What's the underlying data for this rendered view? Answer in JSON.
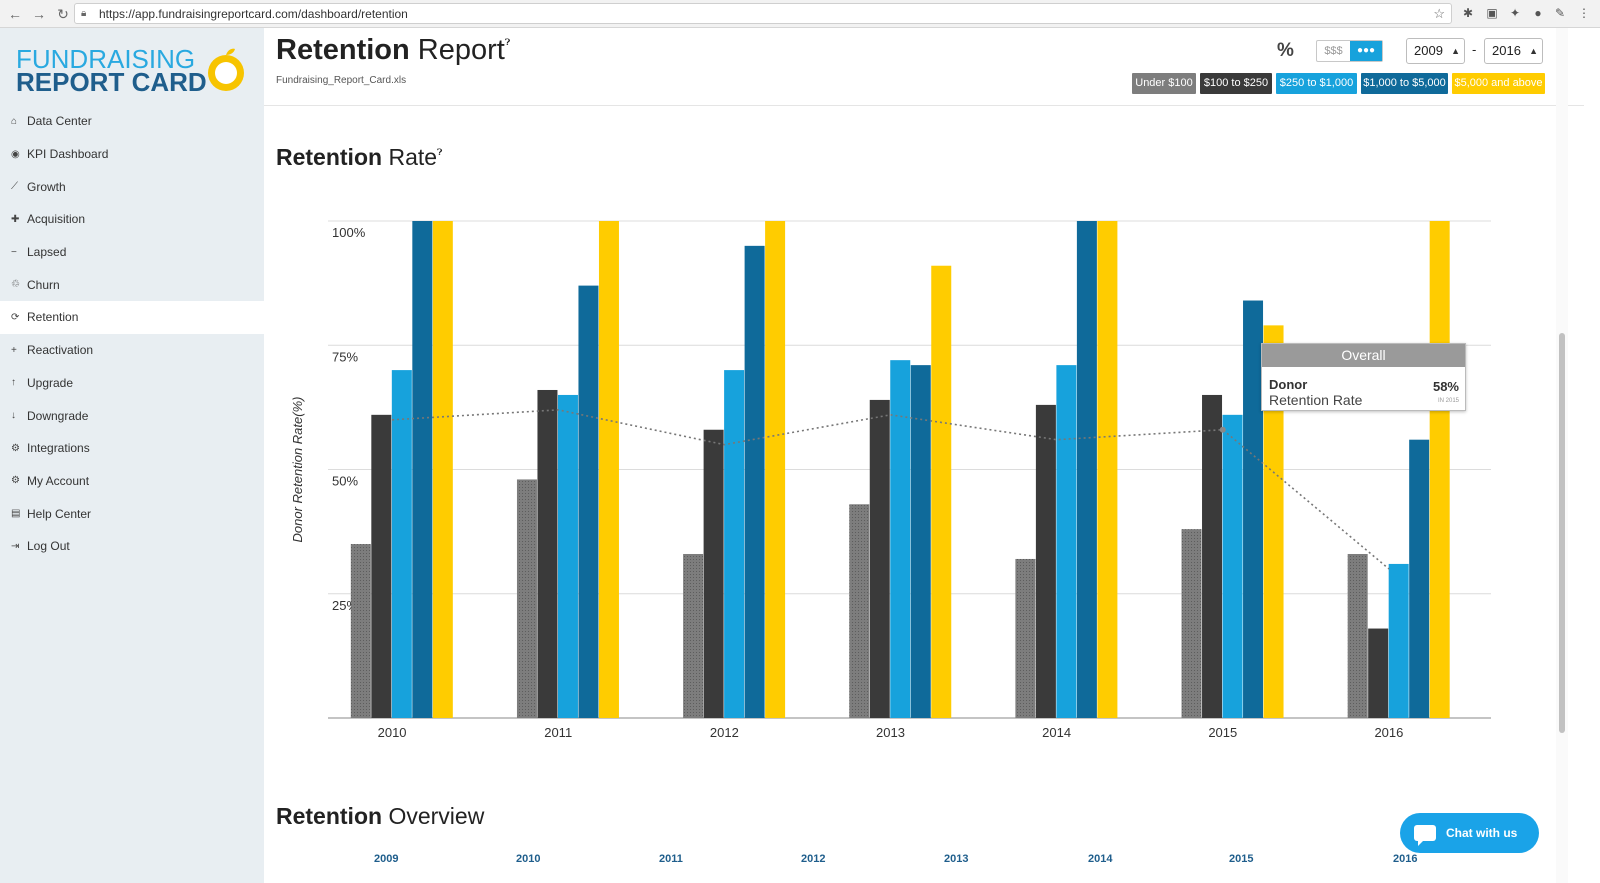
{
  "browser": {
    "url": "https://app.fundraisingreportcard.com/dashboard/retention"
  },
  "logo": {
    "line1": "FUNDRAISING",
    "line2": "REPORT CARD"
  },
  "sidebar": {
    "items": [
      {
        "label": "Data Center",
        "icon": "home-icon",
        "glyph": "⌂"
      },
      {
        "label": "KPI Dashboard",
        "icon": "dashboard-icon",
        "glyph": "◉"
      },
      {
        "label": "Growth",
        "icon": "line-chart-icon",
        "glyph": "⟋"
      },
      {
        "label": "Acquisition",
        "icon": "user-plus-icon",
        "glyph": "✚"
      },
      {
        "label": "Lapsed",
        "icon": "user-minus-icon",
        "glyph": "−"
      },
      {
        "label": "Churn",
        "icon": "recycle-icon",
        "glyph": "♲"
      },
      {
        "label": "Retention",
        "icon": "refresh-icon",
        "glyph": "⟳"
      },
      {
        "label": "Reactivation",
        "icon": "plus-icon",
        "glyph": "+"
      },
      {
        "label": "Upgrade",
        "icon": "arrow-up-icon",
        "glyph": "↑"
      },
      {
        "label": "Downgrade",
        "icon": "arrow-down-icon",
        "glyph": "↓"
      },
      {
        "label": "Integrations",
        "icon": "cogs-icon",
        "glyph": "⚙"
      },
      {
        "label": "My Account",
        "icon": "gear-icon",
        "glyph": "⚙"
      },
      {
        "label": "Help Center",
        "icon": "book-icon",
        "glyph": "▤"
      },
      {
        "label": "Log Out",
        "icon": "sign-out-icon",
        "glyph": "⇥"
      }
    ],
    "active": "Retention"
  },
  "header": {
    "title_bold": "Retention",
    "title_light": " Report",
    "file": "Fundraising_Report_Card.xls",
    "percent_symbol": "%",
    "toggle_money": "$$$",
    "from_year": "2009",
    "to_year": "2016",
    "range_dash": "-",
    "segments": [
      {
        "label": "Under $100",
        "color": "#7d7d7d"
      },
      {
        "label": "$100 to $250",
        "color": "#3a3a3a"
      },
      {
        "label": "$250 to $1,000",
        "color": "#17a2dc"
      },
      {
        "label": "$1,000 to $5,000",
        "color": "#0f6a9a"
      },
      {
        "label": "$5,000 and above",
        "color": "#ffcc00"
      }
    ]
  },
  "section1": {
    "bold": "Retention",
    "light": " Rate"
  },
  "section2": {
    "bold": "Retention",
    "light": " Overview"
  },
  "chart_data": {
    "type": "bar",
    "ylabel": "Donor Retention Rate(%)",
    "ylim": [
      0,
      100
    ],
    "yticks": [
      "25%",
      "50%",
      "75%",
      "100%"
    ],
    "categories": [
      "2010",
      "2011",
      "2012",
      "2013",
      "2014",
      "2015",
      "2016"
    ],
    "series": [
      {
        "name": "Under $100",
        "color": "#7d7d7d",
        "values": [
          35,
          48,
          33,
          43,
          32,
          38,
          33
        ]
      },
      {
        "name": "$100 to $250",
        "color": "#3a3a3a",
        "values": [
          61,
          66,
          58,
          64,
          63,
          65,
          18
        ]
      },
      {
        "name": "$250 to $1,000",
        "color": "#17a2dc",
        "values": [
          70,
          65,
          70,
          72,
          71,
          61,
          31
        ]
      },
      {
        "name": "$1,000 to $5,000",
        "color": "#0f6a9a",
        "values": [
          100,
          87,
          95,
          71,
          100,
          84,
          56
        ]
      },
      {
        "name": "$5,000 and above",
        "color": "#ffcc00",
        "values": [
          100,
          100,
          100,
          91,
          100,
          79,
          100
        ]
      }
    ],
    "overall_line": {
      "name": "Overall",
      "values": [
        60,
        62,
        55,
        61,
        56,
        58,
        30
      ]
    }
  },
  "tooltip": {
    "title": "Overall",
    "line1": "Donor",
    "line2": "Retention Rate",
    "value": "58%",
    "sub": "IN 2015"
  },
  "overview_years": [
    "2009",
    "2010",
    "2011",
    "2012",
    "2013",
    "2014",
    "2015",
    "2016"
  ],
  "chat": {
    "label": "Chat with us"
  }
}
